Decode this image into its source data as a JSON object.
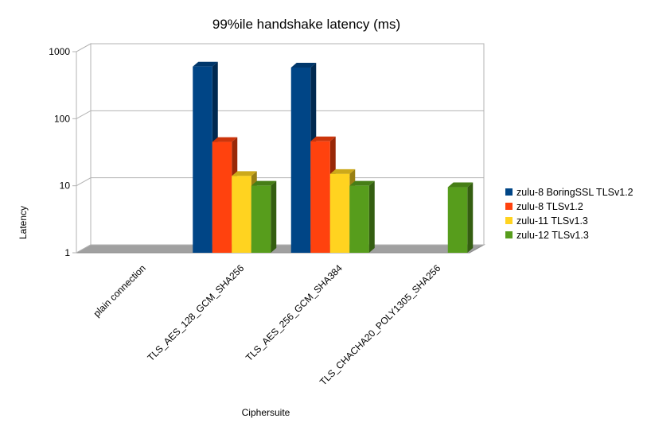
{
  "chart_data": {
    "type": "bar",
    "title": "99%ile handshake latency (ms)",
    "xlabel": "Ciphersuite",
    "ylabel": "Latency",
    "y_scale": "log",
    "ylim": [
      1,
      1000
    ],
    "y_ticks": [
      "1",
      "10",
      "100",
      "1000"
    ],
    "grid": true,
    "legend_position": "right",
    "categories": [
      "plain connection",
      "TLS_AES_128_GCM_SHA256",
      "TLS_AES_256_GCM_SHA384",
      "TLS_CHACHA20_POLY1305_SHA256"
    ],
    "series": [
      {
        "name": "zulu-8 BoringSSL TLSv1.2",
        "color": "#004586",
        "values": [
          null,
          600,
          580,
          null
        ]
      },
      {
        "name": "zulu-8 TLSv1.2",
        "color": "#ff420e",
        "values": [
          null,
          45,
          46,
          null
        ]
      },
      {
        "name": "zulu-11 TLSv1.3",
        "color": "#ffd320",
        "values": [
          null,
          14,
          15,
          null
        ]
      },
      {
        "name": "zulu-12 TLSv1.3",
        "color": "#579d1c",
        "values": [
          null,
          10,
          10,
          9.5
        ]
      }
    ]
  }
}
